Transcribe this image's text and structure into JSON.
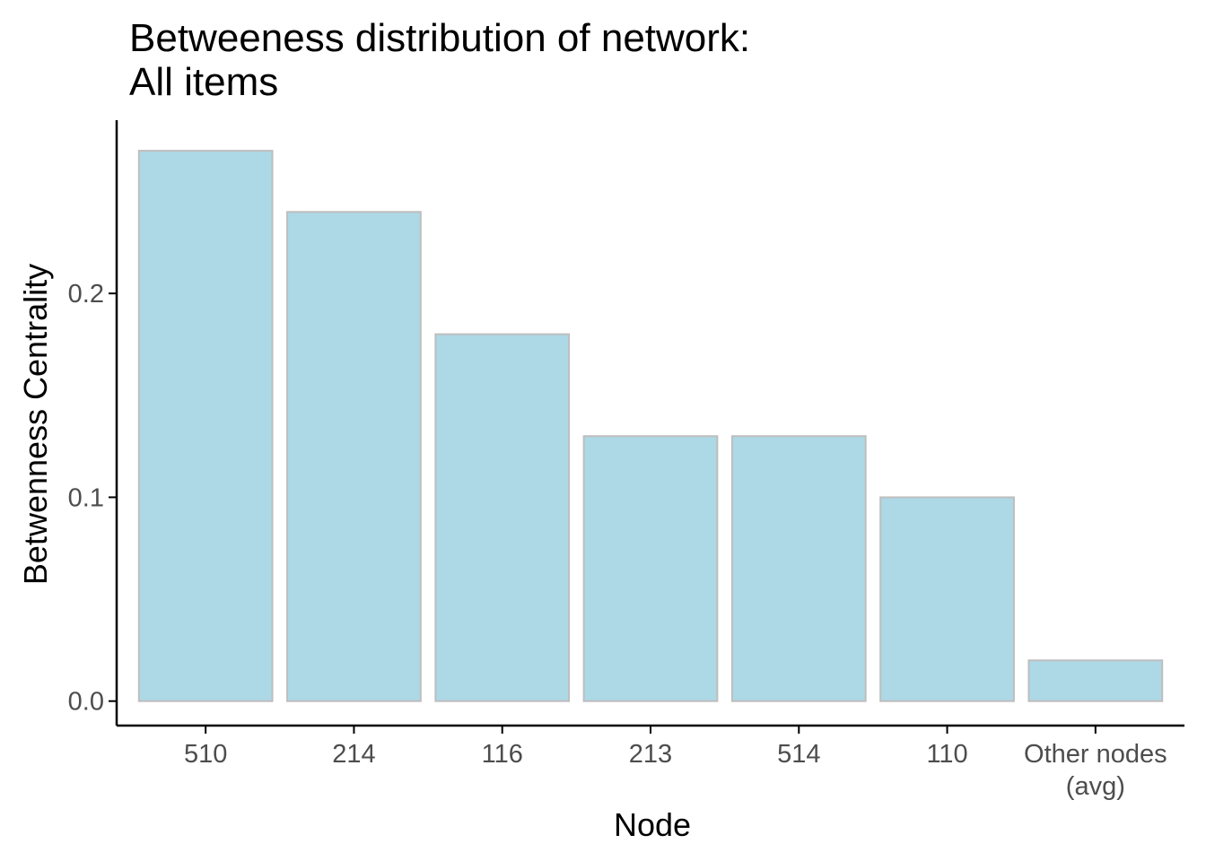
{
  "chart_data": {
    "type": "bar",
    "title": "Betweeness distribution of network:",
    "subtitle": "All items",
    "xlabel": "Node",
    "ylabel": "Betwenness Centrality",
    "categories": [
      [
        "510"
      ],
      [
        "214"
      ],
      [
        "116"
      ],
      [
        "213"
      ],
      [
        "514"
      ],
      [
        "110"
      ],
      [
        "Other nodes",
        "(avg)"
      ]
    ],
    "values": [
      0.27,
      0.24,
      0.18,
      0.13,
      0.13,
      0.1,
      0.02
    ],
    "yticks": [
      0.0,
      0.1,
      0.2
    ],
    "ytick_labels": [
      "0.0",
      "0.1",
      "0.2"
    ],
    "ylim": [
      -0.012,
      0.285
    ],
    "grid": false,
    "legend": "none",
    "colors": {
      "bar_fill": "#add8e6",
      "bar_stroke": "#bebebe",
      "axis": "#000000",
      "tick_text": "#4d4d4d"
    }
  }
}
